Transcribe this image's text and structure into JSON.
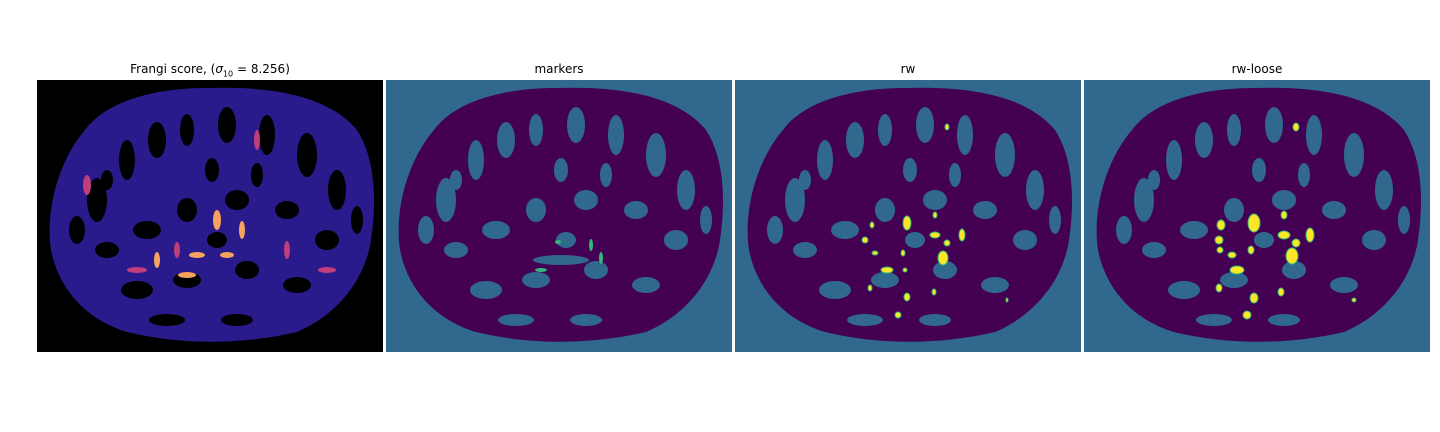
{
  "panels": [
    {
      "title_prefix": "Frangi score, (",
      "title_sigma": "σ",
      "title_sub": "10",
      "title_suffix": " = 8.256)",
      "colormap": "magma"
    },
    {
      "title": "markers",
      "colormap": "viridis"
    },
    {
      "title": "rw",
      "colormap": "viridis"
    },
    {
      "title": "rw-loose",
      "colormap": "viridis"
    }
  ],
  "colors": {
    "background_teal": "#31688e",
    "vessel_purple": "#440154",
    "frangi_background": "#000000",
    "frangi_vessel": "#2b1a8a",
    "frangi_high": "#f8b35a",
    "marker_green": "#35b779",
    "segment_yellow": "#fde725"
  }
}
